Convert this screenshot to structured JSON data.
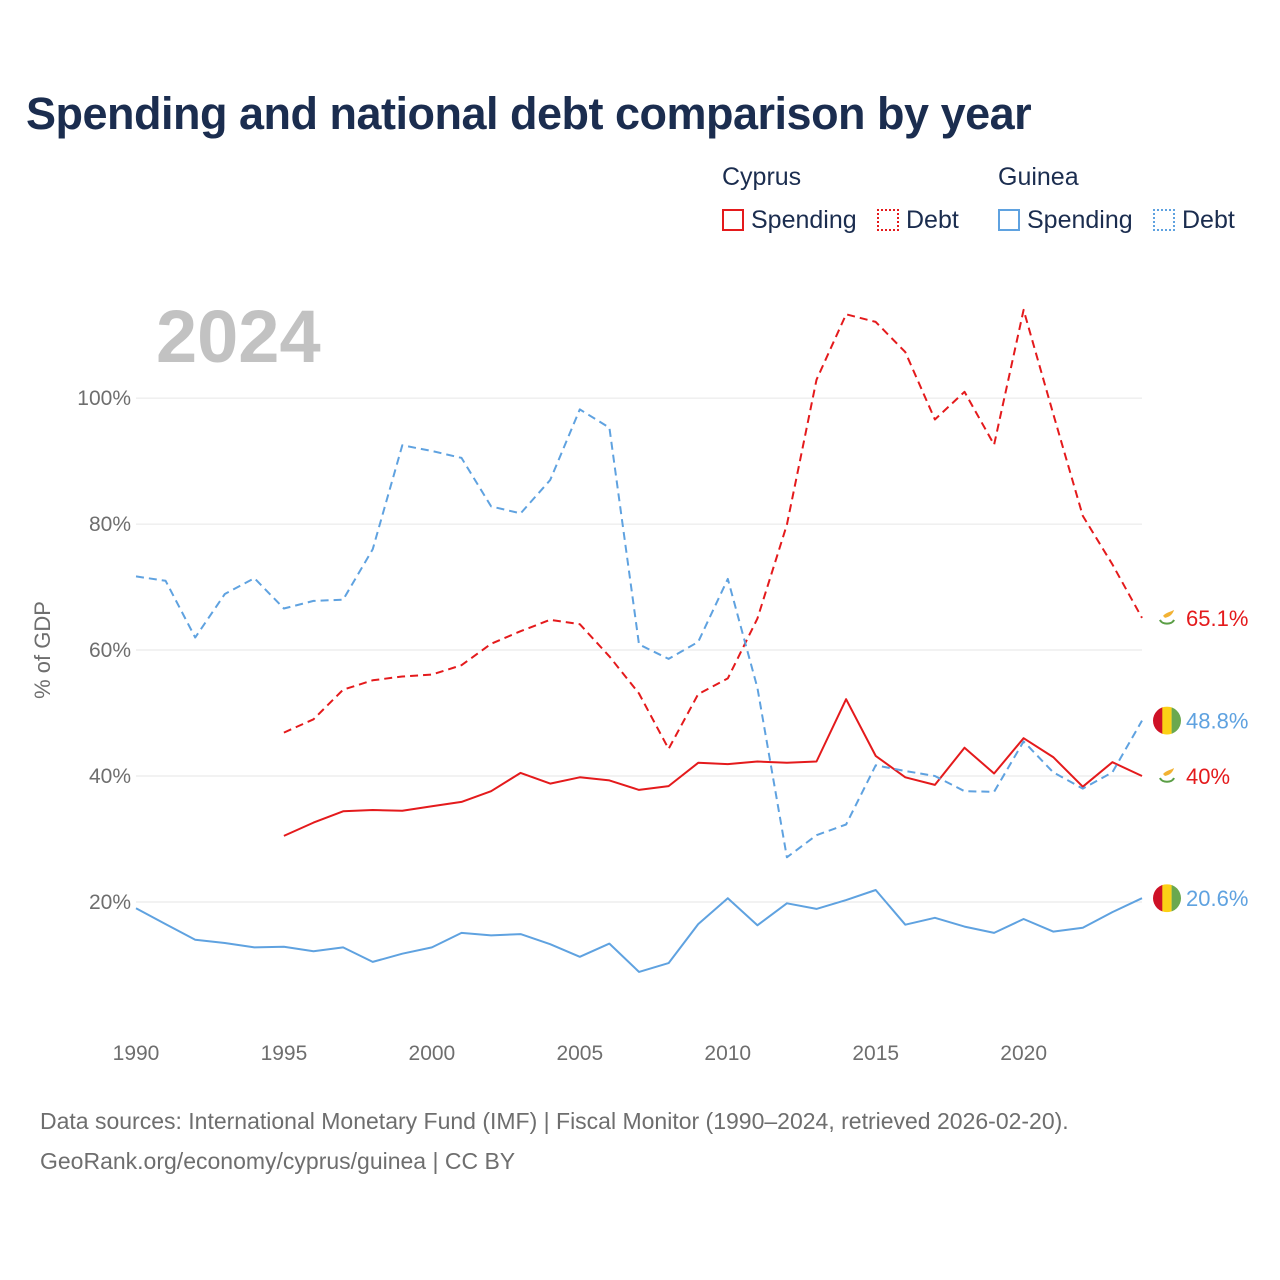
{
  "title": "Spending and national debt comparison by year",
  "legend": {
    "groups": [
      {
        "name": "Cyprus",
        "color": "#e41a1c",
        "items": [
          {
            "label": "Spending",
            "style": "solid"
          },
          {
            "label": "Debt",
            "style": "dotted"
          }
        ]
      },
      {
        "name": "Guinea",
        "color": "#5fa2e0",
        "items": [
          {
            "label": "Spending",
            "style": "solid"
          },
          {
            "label": "Debt",
            "style": "dotted"
          }
        ]
      }
    ]
  },
  "footer": {
    "line1": "Data sources: International Monetary Fund (IMF) | Fiscal Monitor (1990–2024, retrieved 2026-02-20).",
    "line2": "GeoRank.org/economy/cyprus/guinea | CC BY"
  },
  "chart_data": {
    "type": "line",
    "year_label": "2024",
    "ylabel": "% of GDP",
    "xlim": [
      1990,
      2024
    ],
    "ylim": [
      0,
      117
    ],
    "x_ticks": [
      1990,
      1995,
      2000,
      2005,
      2010,
      2015,
      2020
    ],
    "y_ticks": [
      20,
      40,
      60,
      80,
      100
    ],
    "y_tick_labels": [
      "20%",
      "40%",
      "60%",
      "80%",
      "100%"
    ],
    "grid": true,
    "series": [
      {
        "name": "Cyprus Spending",
        "country": "Cyprus",
        "metric": "Spending",
        "color": "#e41a1c",
        "dash": "solid",
        "end_label": "40%",
        "flag": "cyprus-flag-icon",
        "x": [
          1995,
          1996,
          1997,
          1998,
          1999,
          2000,
          2001,
          2002,
          2003,
          2004,
          2005,
          2006,
          2007,
          2008,
          2009,
          2010,
          2011,
          2012,
          2013,
          2014,
          2015,
          2016,
          2017,
          2018,
          2019,
          2020,
          2021,
          2022,
          2023,
          2024
        ],
        "values": [
          30.5,
          32.6,
          34.4,
          34.6,
          34.5,
          35.2,
          35.9,
          37.6,
          40.5,
          38.8,
          39.8,
          39.3,
          37.8,
          38.4,
          42.1,
          41.9,
          42.3,
          42.1,
          42.3,
          52.2,
          43.2,
          39.8,
          38.6,
          44.5,
          40.4,
          46.0,
          43.0,
          38.3,
          42.2,
          40.0
        ]
      },
      {
        "name": "Cyprus Debt",
        "country": "Cyprus",
        "metric": "Debt",
        "color": "#e41a1c",
        "dash": "dashed",
        "end_label": "65.1%",
        "flag": "cyprus-flag-icon",
        "x": [
          1995,
          1996,
          1997,
          1998,
          1999,
          2000,
          2001,
          2002,
          2003,
          2004,
          2005,
          2006,
          2007,
          2008,
          2009,
          2010,
          2011,
          2012,
          2013,
          2014,
          2015,
          2016,
          2017,
          2018,
          2019,
          2020,
          2021,
          2022,
          2023,
          2024
        ],
        "values": [
          46.9,
          49.0,
          53.7,
          55.2,
          55.8,
          56.1,
          57.6,
          61.0,
          63.0,
          64.8,
          64.1,
          59.0,
          53.1,
          44.3,
          53.0,
          55.5,
          65.0,
          79.9,
          102.9,
          113.3,
          112.1,
          107.3,
          96.6,
          101.0,
          92.6,
          114.0,
          97.5,
          81.3,
          73.6,
          65.1
        ]
      },
      {
        "name": "Guinea Spending",
        "country": "Guinea",
        "metric": "Spending",
        "color": "#5fa2e0",
        "dash": "solid",
        "end_label": "20.6%",
        "flag": "guinea-flag-icon",
        "x": [
          1990,
          1991,
          1992,
          1993,
          1994,
          1995,
          1996,
          1997,
          1998,
          1999,
          2000,
          2001,
          2002,
          2003,
          2004,
          2005,
          2006,
          2007,
          2008,
          2009,
          2010,
          2011,
          2012,
          2013,
          2014,
          2015,
          2016,
          2017,
          2018,
          2019,
          2020,
          2021,
          2022,
          2023,
          2024
        ],
        "values": [
          19.0,
          16.5,
          14.0,
          13.5,
          12.8,
          12.9,
          12.2,
          12.8,
          10.5,
          11.8,
          12.8,
          15.1,
          14.7,
          14.9,
          13.3,
          11.3,
          13.4,
          8.9,
          10.3,
          16.5,
          20.6,
          16.3,
          19.8,
          18.9,
          20.3,
          21.9,
          16.4,
          17.5,
          16.1,
          15.1,
          17.3,
          15.3,
          15.9,
          18.4,
          20.6
        ]
      },
      {
        "name": "Guinea Debt",
        "country": "Guinea",
        "metric": "Debt",
        "color": "#5fa2e0",
        "dash": "dashed",
        "end_label": "48.8%",
        "flag": "guinea-flag-icon",
        "x": [
          1990,
          1991,
          1992,
          1993,
          1994,
          1995,
          1996,
          1997,
          1998,
          1999,
          2000,
          2001,
          2002,
          2003,
          2004,
          2005,
          2006,
          2007,
          2008,
          2009,
          2010,
          2011,
          2012,
          2013,
          2014,
          2015,
          2016,
          2017,
          2018,
          2019,
          2020,
          2021,
          2022,
          2023,
          2024
        ],
        "values": [
          71.7,
          71.0,
          62.0,
          68.9,
          71.4,
          66.6,
          67.8,
          68.0,
          76.0,
          92.5,
          91.6,
          90.5,
          82.8,
          81.7,
          87.0,
          98.2,
          95.3,
          60.9,
          58.6,
          61.3,
          71.3,
          54.0,
          27.1,
          30.6,
          32.3,
          41.7,
          40.8,
          40.0,
          37.6,
          37.5,
          45.5,
          40.6,
          38.0,
          40.6,
          48.8
        ]
      }
    ]
  }
}
